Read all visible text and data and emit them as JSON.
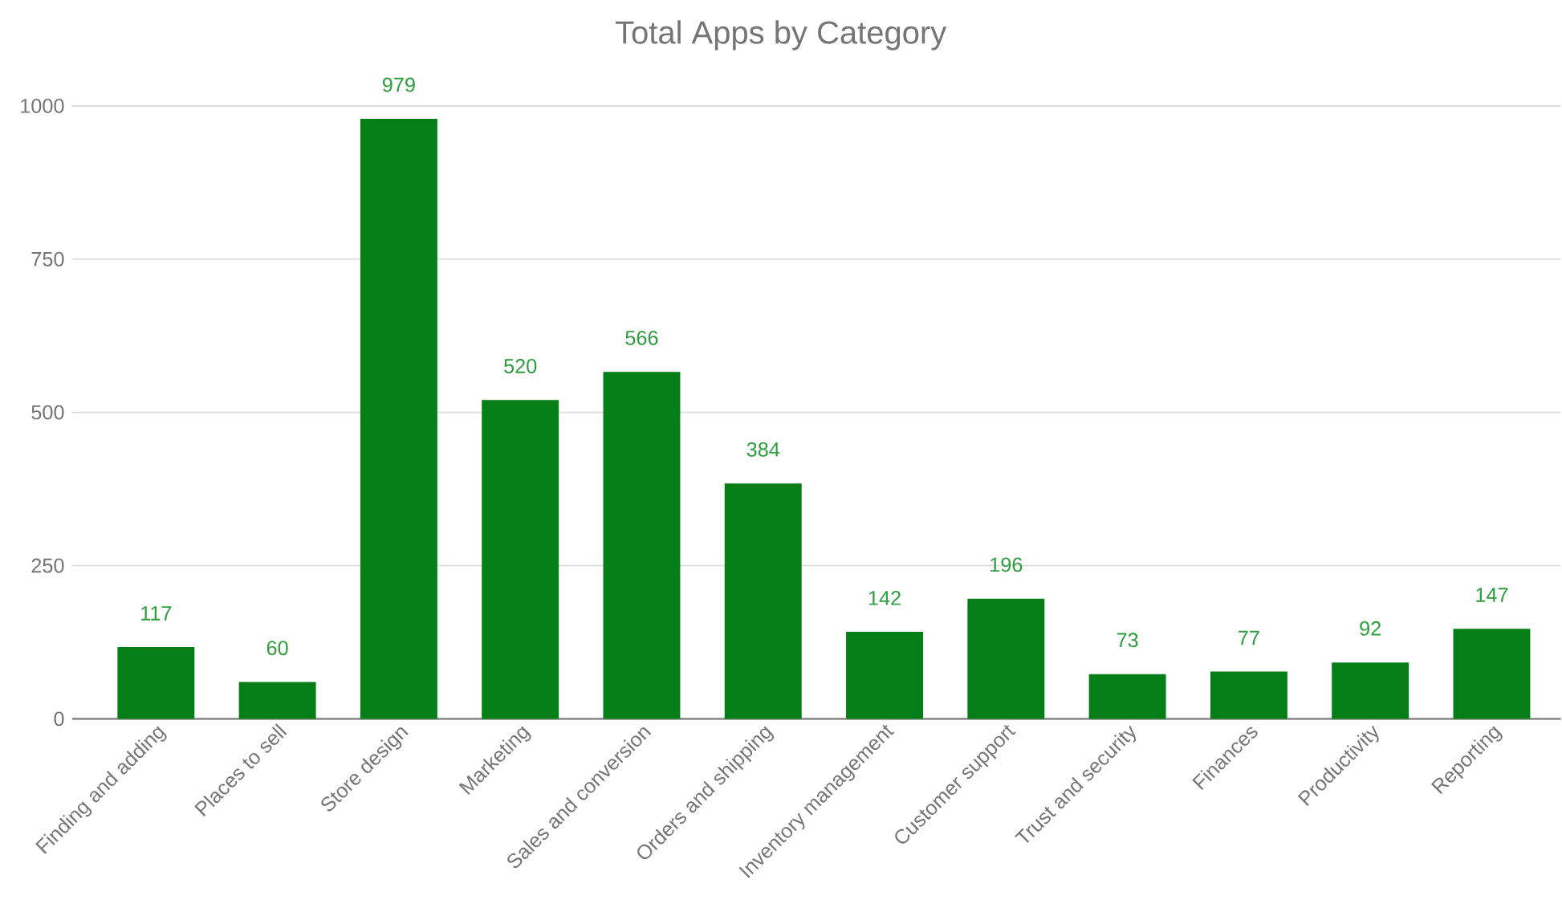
{
  "chart_data": {
    "type": "bar",
    "title": "Total Apps by Category",
    "categories": [
      "Finding and adding",
      "Places to sell",
      "Store design",
      "Marketing",
      "Sales and conversion",
      "Orders and shipping",
      "Inventory management",
      "Customer support",
      "Trust and security",
      "Finances",
      "Productivity",
      "Reporting"
    ],
    "values": [
      117,
      60,
      979,
      520,
      566,
      384,
      142,
      196,
      73,
      77,
      92,
      147
    ],
    "color": "#057e17",
    "ylim": [
      0,
      1000
    ],
    "yticks": [
      0,
      250,
      500,
      750,
      1000
    ],
    "grid": "y",
    "data_labels": true
  }
}
